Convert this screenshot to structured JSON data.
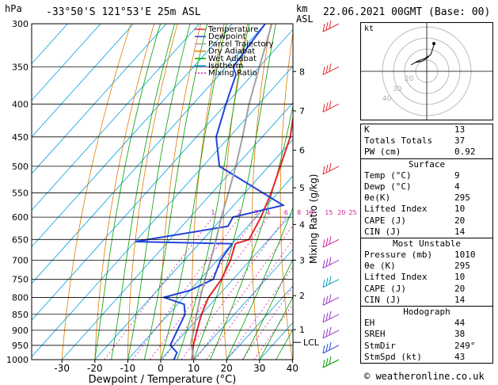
{
  "header": {
    "hpa_label": "hPa",
    "location": "-33°50'S 121°53'E 25m ASL",
    "km_label": "km",
    "asl_label": "ASL",
    "datetime": "22.06.2021 00GMT (Base: 00)"
  },
  "chart_data": {
    "type": "line",
    "xlabel": "Dewpoint / Temperature (°C)",
    "ylabel_right": "Mixing Ratio (g/kg)",
    "pressure_ticks": [
      300,
      350,
      400,
      450,
      500,
      550,
      600,
      650,
      700,
      750,
      800,
      850,
      900,
      950,
      1000
    ],
    "x_ticks": [
      -30,
      -20,
      -10,
      0,
      10,
      20,
      30,
      40
    ],
    "km_ticks": [
      {
        "km": "8",
        "p": 356
      },
      {
        "km": "7",
        "p": 410
      },
      {
        "km": "6",
        "p": 472
      },
      {
        "km": "5",
        "p": 540
      },
      {
        "km": "4",
        "p": 616
      },
      {
        "km": "3",
        "p": 700
      },
      {
        "km": "2",
        "p": 795
      },
      {
        "km": "1",
        "p": 898
      }
    ],
    "lcl_label": "LCL",
    "lcl_p": 940,
    "mixing_ratio_labels": [
      "1",
      "2",
      "3",
      "4",
      "6",
      "8",
      "10",
      "15",
      "20",
      "25"
    ],
    "legend": [
      "Temperature",
      "Dewpoint",
      "Parcel Trajectory",
      "Dry Adiabat",
      "Wet Adiabat",
      "Isotherm",
      "Mixing Ratio"
    ],
    "series": [
      {
        "name": "Temperature",
        "color": "#e8262b",
        "points": [
          [
            1000,
            9.5
          ],
          [
            950,
            6
          ],
          [
            900,
            3
          ],
          [
            850,
            0
          ],
          [
            800,
            -2.5
          ],
          [
            750,
            -3.5
          ],
          [
            700,
            -6
          ],
          [
            660,
            -9
          ],
          [
            650,
            -6
          ],
          [
            600,
            -8.5
          ],
          [
            550,
            -12
          ],
          [
            500,
            -16.5
          ],
          [
            450,
            -21.5
          ],
          [
            400,
            -29
          ],
          [
            350,
            -35
          ],
          [
            340,
            -36
          ],
          [
            300,
            -42
          ]
        ]
      },
      {
        "name": "Dewpoint",
        "color": "#2244dd",
        "points": [
          [
            1000,
            4
          ],
          [
            975,
            3
          ],
          [
            950,
            -1
          ],
          [
            900,
            -3
          ],
          [
            850,
            -5
          ],
          [
            820,
            -8
          ],
          [
            800,
            -16
          ],
          [
            780,
            -10
          ],
          [
            750,
            -6
          ],
          [
            700,
            -9
          ],
          [
            660,
            -10
          ],
          [
            655,
            -40
          ],
          [
            620,
            -16
          ],
          [
            600,
            -17
          ],
          [
            575,
            -5
          ],
          [
            500,
            -35
          ],
          [
            450,
            -44
          ],
          [
            400,
            -50
          ],
          [
            360,
            -55
          ],
          [
            350,
            -58
          ],
          [
            300,
            -60
          ]
        ]
      },
      {
        "name": "Parcel Trajectory",
        "color": "#a0a0a0",
        "points": [
          [
            1000,
            10
          ],
          [
            940,
            4.5
          ],
          [
            900,
            2
          ],
          [
            850,
            -1.5
          ],
          [
            800,
            -5
          ],
          [
            750,
            -8.5
          ],
          [
            700,
            -12
          ],
          [
            650,
            -16
          ],
          [
            600,
            -20.5
          ],
          [
            550,
            -25
          ],
          [
            500,
            -30
          ],
          [
            450,
            -36
          ],
          [
            400,
            -43
          ],
          [
            350,
            -50
          ],
          [
            300,
            -58
          ]
        ]
      }
    ],
    "legend_colors": {
      "Temperature": "#e8262b",
      "Dewpoint": "#2244dd",
      "Parcel Trajectory": "#a0a0a0",
      "Dry Adiabat": "#e07a00",
      "Wet Adiabat": "#00a000",
      "Isotherm": "#00a0e0",
      "Mixing Ratio": "#d020a0"
    }
  },
  "hodograph": {
    "label": "kt"
  },
  "params": {
    "top": [
      {
        "label": "K",
        "value": "13"
      },
      {
        "label": "Totals Totals",
        "value": "37"
      },
      {
        "label": "PW (cm)",
        "value": "0.92"
      }
    ],
    "surface": {
      "title": "Surface",
      "rows": [
        {
          "label": "Temp (°C)",
          "value": "9"
        },
        {
          "label": "Dewp (°C)",
          "value": "4"
        },
        {
          "label": "θe(K)",
          "value": "295"
        },
        {
          "label": "Lifted Index",
          "value": "10"
        },
        {
          "label": "CAPE (J)",
          "value": "20"
        },
        {
          "label": "CIN (J)",
          "value": "14"
        }
      ]
    },
    "unstable": {
      "title": "Most Unstable",
      "rows": [
        {
          "label": "Pressure (mb)",
          "value": "1010"
        },
        {
          "label": "θe (K)",
          "value": "295"
        },
        {
          "label": "Lifted Index",
          "value": "10"
        },
        {
          "label": "CAPE (J)",
          "value": "20"
        },
        {
          "label": "CIN (J)",
          "value": "14"
        }
      ]
    },
    "hodo": {
      "title": "Hodograph",
      "rows": [
        {
          "label": "EH",
          "value": "44"
        },
        {
          "label": "SREH",
          "value": "38"
        },
        {
          "label": "StmDir",
          "value": "249°"
        },
        {
          "label": "StmSpd (kt)",
          "value": "43"
        }
      ]
    }
  },
  "copyright": "© weatheronline.co.uk"
}
